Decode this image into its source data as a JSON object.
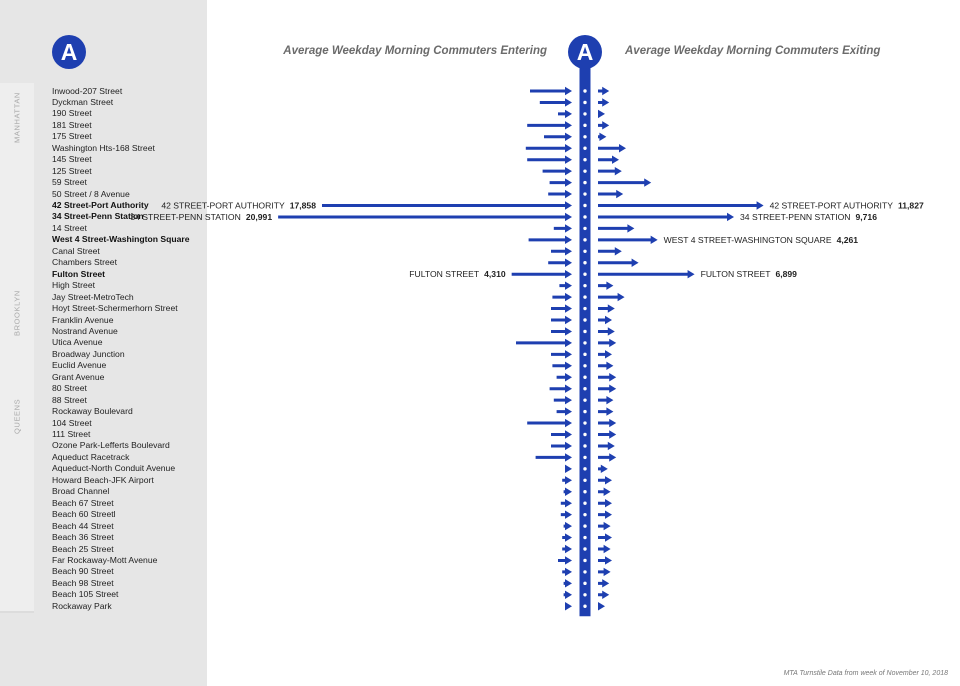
{
  "line": {
    "symbol": "A",
    "color": "#1e3fb0"
  },
  "headings": {
    "entering": "Average Weekday Morning Commuters Entering",
    "exiting": "Average Weekday Morning Commuters Exiting"
  },
  "boroughs": [
    {
      "name": "MANHATTAN",
      "first": 0,
      "last": 17
    },
    {
      "name": "BROOKLYN",
      "first": 17,
      "last": 26
    },
    {
      "name": "QUEENS",
      "first": 26,
      "last": 46
    }
  ],
  "footnote": "MTA Turnstile Data from week of November 10, 2018",
  "chart_data": {
    "type": "bar",
    "orientation": "diverging-horizontal",
    "series": [
      {
        "name": "Average Weekday Morning Commuters Entering",
        "side": "left",
        "values": [
          3000,
          2300,
          1000,
          3200,
          2000,
          3300,
          3200,
          2100,
          1600,
          1700,
          17858,
          20991,
          1300,
          3100,
          1500,
          1700,
          4310,
          900,
          1400,
          1500,
          1500,
          1500,
          4000,
          1500,
          1400,
          1100,
          1600,
          1300,
          1100,
          3200,
          1500,
          1500,
          2600,
          500,
          700,
          600,
          800,
          800,
          600,
          700,
          700,
          1000,
          700,
          600,
          600,
          400
        ]
      },
      {
        "name": "Average Weekday Morning Commuters Exiting",
        "side": "right",
        "values": [
          800,
          800,
          500,
          800,
          600,
          2000,
          1500,
          1700,
          3800,
          1800,
          11827,
          9716,
          2600,
          4261,
          1700,
          2900,
          6899,
          1100,
          1900,
          1200,
          1000,
          1200,
          1300,
          1000,
          1100,
          1300,
          1300,
          1100,
          1100,
          1300,
          1300,
          1200,
          1300,
          700,
          1000,
          900,
          1000,
          1000,
          900,
          1000,
          900,
          1000,
          900,
          800,
          800,
          400
        ]
      }
    ],
    "stations": [
      "Inwood-207 Street",
      "Dyckman Street",
      "190 Street",
      "181 Street",
      "175 Street",
      "Washington Hts-168 Street",
      "145 Street",
      "125 Street",
      "59 Street",
      "50 Street / 8 Avenue",
      "42 Street-Port Authority",
      "34 Street-Penn Station",
      "14 Street",
      "West 4 Street-Washington Square",
      "Canal Street",
      "Chambers Street",
      "Fulton Street",
      "High Street",
      "Jay Street-MetroTech",
      "Hoyt Street-Schermerhorn Street",
      "Franklin Avenue",
      "Nostrand Avenue",
      "Utica Avenue",
      "Broadway Junction",
      "Euclid Avenue",
      "Grant Avenue",
      "80 Street",
      "88 Street",
      "Rockaway Boulevard",
      "104 Street",
      "111 Street",
      "Ozone Park-Lefferts Boulevard",
      "Aqueduct Racetrack",
      "Aqueduct-North Conduit Avenue",
      "Howard Beach-JFK Airport",
      "Broad Channel",
      "Beach 67 Street",
      "Beach 60 Streetl",
      "Beach 44 Street",
      "Beach 36 Street",
      "Beach 25 Street",
      "Far Rockaway-Mott Avenue",
      "Beach 90 Street",
      "Beach 98 Street",
      "Beach 105 Street",
      "Rockaway Park"
    ],
    "bold_stations": [
      10,
      11,
      13,
      16
    ],
    "annotations": [
      {
        "station": 10,
        "side": "left",
        "label": "42 STREET-PORT AUTHORITY",
        "value": "17,858"
      },
      {
        "station": 11,
        "side": "left",
        "label": "34 STREET-PENN STATION",
        "value": "20,991"
      },
      {
        "station": 16,
        "side": "left",
        "label": "FULTON STREET",
        "value": "4,310"
      },
      {
        "station": 10,
        "side": "right",
        "label": "42 STREET-PORT AUTHORITY",
        "value": "11,827"
      },
      {
        "station": 11,
        "side": "right",
        "label": "34 STREET-PENN STATION",
        "value": "9,716"
      },
      {
        "station": 13,
        "side": "right",
        "label": "WEST 4 STREET-WASHINGTON SQUARE",
        "value": "4,261"
      },
      {
        "station": 16,
        "side": "right",
        "label": "FULTON STREET",
        "value": "6,899"
      }
    ],
    "xlabel": "",
    "ylabel": "",
    "grid": false
  }
}
